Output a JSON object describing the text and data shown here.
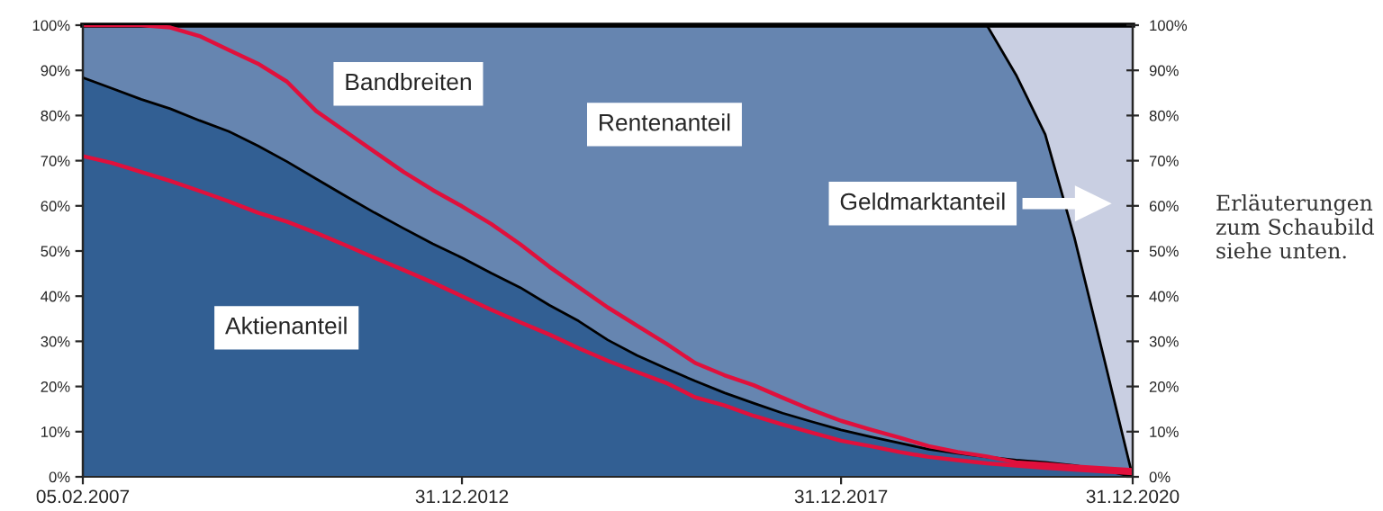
{
  "chart_data": {
    "type": "area",
    "stacked": true,
    "legend": false,
    "categories": [
      "05.02.2007",
      null,
      null,
      null,
      null,
      null,
      null,
      null,
      null,
      null,
      null,
      null,
      null,
      "31.12.2012",
      null,
      null,
      null,
      null,
      null,
      null,
      null,
      null,
      null,
      null,
      null,
      null,
      "31.12.2017",
      null,
      null,
      null,
      null,
      null,
      null,
      null,
      null,
      null,
      "31.12.2020"
    ],
    "series": [
      {
        "name": "Aktienanteil",
        "color": "#325f93",
        "values": [
          88.4,
          86,
          83.6,
          81.5,
          78.9,
          76.5,
          73.3,
          69.8,
          66,
          62.2,
          58.5,
          55,
          51.6,
          48.5,
          45.1,
          41.9,
          38,
          34.5,
          30.3,
          26.9,
          24,
          21.2,
          18.6,
          16.3,
          14.1,
          12.2,
          10.4,
          8.9,
          7.5,
          6.1,
          5.2,
          4.4,
          3.7,
          3.2,
          2.5,
          1.5,
          0
        ]
      },
      {
        "name": "Rentenanteil",
        "color": "#6685b0",
        "values": [
          11.6,
          14,
          16.4,
          18.5,
          21.1,
          23.5,
          26.7,
          30.2,
          34,
          37.8,
          41.5,
          45,
          48.4,
          51.5,
          54.9,
          58.1,
          62,
          65.5,
          69.7,
          73.1,
          76,
          78.8,
          81.4,
          83.7,
          85.9,
          87.8,
          89.6,
          91.1,
          92.5,
          93.9,
          94.8,
          95.6,
          85.3,
          72.6,
          50.5,
          25.2,
          0
        ]
      },
      {
        "name": "Geldmarktanteil",
        "color": "#c9cfe2",
        "values": [
          null,
          null,
          null,
          null,
          null,
          null,
          null,
          null,
          null,
          null,
          null,
          null,
          null,
          null,
          null,
          null,
          null,
          null,
          null,
          null,
          null,
          null,
          null,
          null,
          null,
          null,
          null,
          null,
          null,
          null,
          null,
          0,
          11,
          24.2,
          47,
          73.3,
          100
        ]
      },
      {
        "name": "Bandbreiten",
        "type": "line",
        "color": "#e0103c",
        "values": [
          100,
          100,
          100,
          99.5,
          97.6,
          94.5,
          91.5,
          87.5,
          81,
          76.5,
          72,
          67.5,
          63.5,
          59.9,
          56,
          51.5,
          46.5,
          42,
          37.5,
          33.5,
          29.5,
          25.2,
          22.5,
          20.3,
          17.5,
          14.8,
          12.4,
          10.5,
          8.7,
          6.8,
          5.5,
          4.5,
          3.2,
          2.8,
          2.3,
          1.9,
          1.5
        ]
      },
      {
        "type": "line",
        "color": "#e0103c",
        "values": [
          71,
          69.5,
          67.5,
          65.5,
          63.3,
          61,
          58.5,
          56.5,
          54,
          51.3,
          48.5,
          45.8,
          43,
          40,
          37,
          34.2,
          31.5,
          28.5,
          25.7,
          23.2,
          20.8,
          17.6,
          15.8,
          13.5,
          11.6,
          9.8,
          8,
          6.8,
          5.5,
          4.4,
          3.7,
          3,
          2.5,
          2,
          1.6,
          1.2,
          0.8
        ]
      }
    ],
    "ylim": [
      0,
      100
    ],
    "yticks": [
      {
        "value": 0,
        "label": "0%"
      },
      {
        "value": 10,
        "label": "10%"
      },
      {
        "value": 20,
        "label": "20%"
      },
      {
        "value": 30,
        "label": "30%"
      },
      {
        "value": 40,
        "label": "40%"
      },
      {
        "value": 50,
        "label": "50%"
      },
      {
        "value": 60,
        "label": "60%"
      },
      {
        "value": 70,
        "label": "70%"
      },
      {
        "value": 80,
        "label": "80%"
      },
      {
        "value": 90,
        "label": "90%"
      },
      {
        "value": 100,
        "label": "100%"
      }
    ],
    "y2lim": [
      0,
      100
    ],
    "y2ticks": [
      {
        "value": 0,
        "label": "0%"
      },
      {
        "value": 10,
        "label": "10%"
      },
      {
        "value": 20,
        "label": "20%"
      },
      {
        "value": 30,
        "label": "30%"
      },
      {
        "value": 40,
        "label": "40%"
      },
      {
        "value": 50,
        "label": "50%"
      },
      {
        "value": 60,
        "label": "60%"
      },
      {
        "value": 70,
        "label": "70%"
      },
      {
        "value": 80,
        "label": "80%"
      },
      {
        "value": 90,
        "label": "90%"
      },
      {
        "value": 100,
        "label": "100%"
      }
    ],
    "annotations": [
      "Erläuterungen zum Schaubild siehe unten."
    ]
  }
}
